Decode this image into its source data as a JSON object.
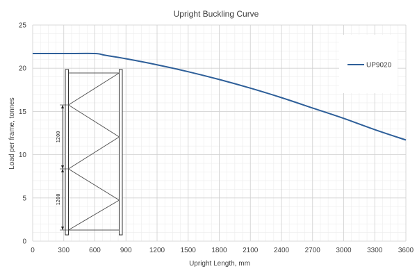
{
  "chart_data": {
    "type": "line",
    "title": "Upright Buckling Curve",
    "xlabel": "Upright Length, mm",
    "ylabel": "Load per frame, tonnes",
    "xlim": [
      0,
      3600
    ],
    "ylim": [
      0,
      25
    ],
    "x_ticks": [
      "0",
      "300",
      "600",
      "900",
      "1200",
      "1500",
      "1800",
      "2100",
      "2400",
      "2700",
      "3000",
      "3300",
      "3600"
    ],
    "y_ticks": [
      "0",
      "5",
      "10",
      "15",
      "20",
      "25"
    ],
    "grid": true,
    "legend_position": "top-right",
    "series": [
      {
        "name": "UP9020",
        "color": "#2e5f99",
        "x": [
          0,
          300,
          600,
          700,
          900,
          1200,
          1500,
          1800,
          2100,
          2400,
          2700,
          3000,
          3300,
          3600
        ],
        "y": [
          21.7,
          21.7,
          21.7,
          21.5,
          21.1,
          20.4,
          19.6,
          18.7,
          17.7,
          16.6,
          15.4,
          14.2,
          12.9,
          11.7
        ]
      }
    ],
    "inset_dimensions": [
      "1200",
      "1200"
    ]
  }
}
